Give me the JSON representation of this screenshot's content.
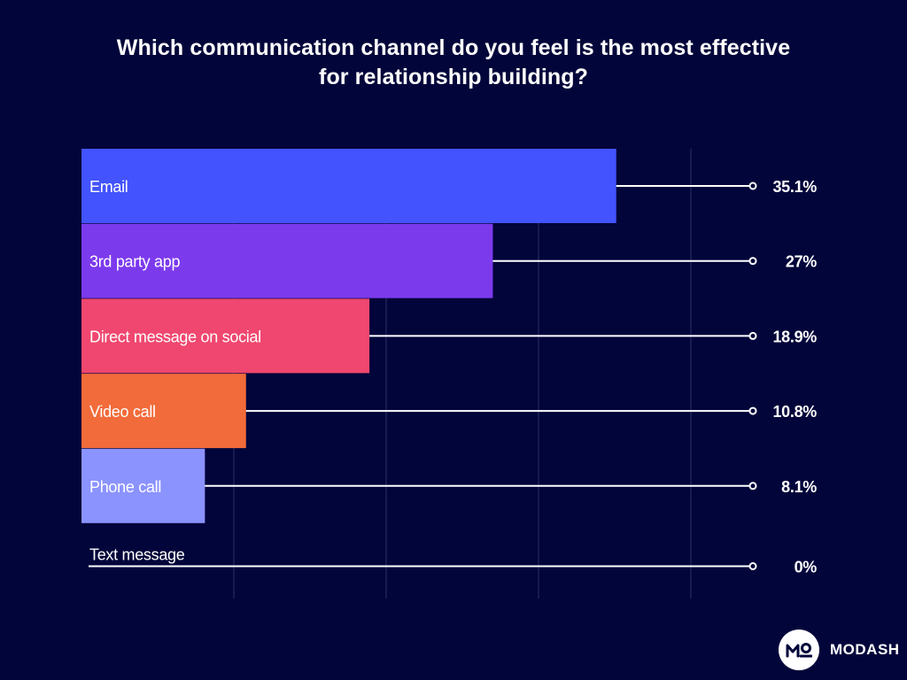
{
  "chart_data": {
    "type": "bar",
    "orientation": "horizontal",
    "title_lines": [
      "Which communication channel do you feel is the most effective",
      "for relationship building?"
    ],
    "categories": [
      "Email",
      "3rd party app",
      "Direct message on social",
      "Video call",
      "Phone call",
      "Text message"
    ],
    "values": [
      35.1,
      27,
      18.9,
      10.8,
      8.1,
      0
    ],
    "value_labels": [
      "35.1%",
      "27%",
      "18.9%",
      "10.8%",
      "8.1%",
      "0%"
    ],
    "colors": [
      "#4353fd",
      "#7c3aed",
      "#ef476f",
      "#f26b3a",
      "#8b93ff",
      "#4353fd"
    ],
    "xlim": [
      0,
      40
    ],
    "grid": true,
    "xlabel": "",
    "ylabel": ""
  },
  "brand": {
    "name": "MODASH",
    "mark_color": "#02053a"
  }
}
